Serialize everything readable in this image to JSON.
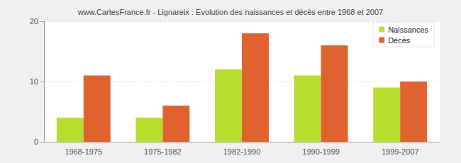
{
  "chart_data": {
    "type": "bar",
    "title": "www.CartesFrance.fr - Lignareix : Evolution des naissances et décès entre 1968 et 2007",
    "categories": [
      "1968-1975",
      "1975-1982",
      "1982-1990",
      "1990-1999",
      "1999-2007"
    ],
    "series": [
      {
        "name": "Naissances",
        "color": "#b8dd2e",
        "values": [
          4,
          4,
          12,
          11,
          9
        ]
      },
      {
        "name": "Décès",
        "color": "#e0632f",
        "values": [
          11,
          6,
          18,
          16,
          10
        ]
      }
    ],
    "ylim": [
      0,
      20
    ],
    "yticks": [
      0,
      10,
      20
    ],
    "grid": true,
    "legend": "top-right"
  }
}
